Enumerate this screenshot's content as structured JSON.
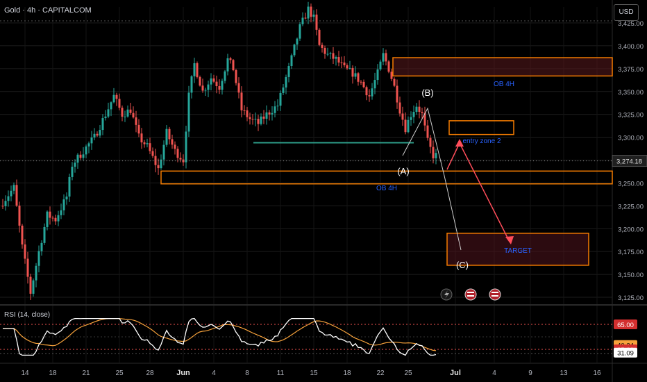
{
  "header": {
    "title": "Gold · 4h · CAPITALCOM",
    "currency_button": "USD"
  },
  "colors": {
    "up": "#26a69a",
    "down": "#ef5350",
    "orange": "#f57c00",
    "support_line": "#2e9e8a",
    "rsi_line": "#ffffff",
    "rsi_ma": "#f7a23b",
    "label_blue": "#2962ff"
  },
  "chart_data": [
    {
      "type": "candlestick",
      "symbol": "Gold",
      "timeframe": "4h",
      "ylim": [
        3115,
        3455
      ],
      "y_ticks": [
        "3,425.00",
        "3,400.00",
        "3,375.00",
        "3,350.00",
        "3,325.00",
        "3,300.00",
        "3,275.00",
        "3,250.00",
        "3,225.00",
        "3,200.00",
        "3,175.00",
        "3,150.00",
        "3,125.00"
      ],
      "y_tick_values": [
        3425,
        3400,
        3375,
        3350,
        3325,
        3300,
        3275,
        3250,
        3225,
        3200,
        3175,
        3150,
        3125
      ],
      "x_ticks": [
        "14",
        "18",
        "21",
        "25",
        "28",
        "Jun",
        "4",
        "8",
        "11",
        "15",
        "18",
        "22",
        "25",
        "Jul",
        "4",
        "9",
        "13",
        "16"
      ],
      "x_tick_slots": [
        8,
        18,
        30,
        42,
        53,
        65,
        76,
        88,
        100,
        112,
        124,
        136,
        146,
        163,
        177,
        190,
        202,
        214
      ],
      "last_price": "3,274.18",
      "last_price_value": 3274.18,
      "path": [
        [
          0,
          3225
        ],
        [
          5,
          3245
        ],
        [
          8,
          3180
        ],
        [
          11,
          3130
        ],
        [
          14,
          3175
        ],
        [
          17,
          3215
        ],
        [
          20,
          3210
        ],
        [
          24,
          3235
        ],
        [
          26,
          3270
        ],
        [
          30,
          3285
        ],
        [
          34,
          3300
        ],
        [
          38,
          3325
        ],
        [
          41,
          3345
        ],
        [
          44,
          3325
        ],
        [
          47,
          3330
        ],
        [
          50,
          3300
        ],
        [
          53,
          3290
        ],
        [
          57,
          3265
        ],
        [
          60,
          3305
        ],
        [
          63,
          3285
        ],
        [
          66,
          3275
        ],
        [
          68,
          3345
        ],
        [
          70,
          3380
        ],
        [
          73,
          3350
        ],
        [
          76,
          3365
        ],
        [
          79,
          3355
        ],
        [
          82,
          3385
        ],
        [
          84,
          3375
        ],
        [
          87,
          3330
        ],
        [
          90,
          3320
        ],
        [
          93,
          3315
        ],
        [
          96,
          3325
        ],
        [
          100,
          3335
        ],
        [
          104,
          3375
        ],
        [
          108,
          3420
        ],
        [
          111,
          3440
        ],
        [
          113,
          3430
        ],
        [
          115,
          3400
        ],
        [
          118,
          3390
        ],
        [
          121,
          3385
        ],
        [
          124,
          3375
        ],
        [
          127,
          3370
        ],
        [
          130,
          3360
        ],
        [
          133,
          3345
        ],
        [
          136,
          3370
        ],
        [
          138,
          3390
        ],
        [
          140,
          3375
        ],
        [
          142,
          3355
        ],
        [
          144,
          3330
        ],
        [
          146,
          3310
        ],
        [
          148,
          3325
        ],
        [
          150,
          3335
        ],
        [
          152,
          3325
        ],
        [
          154,
          3295
        ],
        [
          156,
          3280
        ]
      ],
      "annotations": {
        "ob_upper_label": "OB 4H",
        "ob_upper_range": [
          3367,
          3387
        ],
        "ob_lower_label": "OB 4H",
        "ob_lower_range": [
          3249,
          3263
        ],
        "entry_label": "entry zone 2",
        "entry_range": [
          3303,
          3318
        ],
        "target_label": "TARGET",
        "target_range": [
          3160,
          3195
        ],
        "wave_a": "(A)",
        "wave_b": "(B)",
        "wave_c": "(C)",
        "support_level": 3294
      }
    },
    {
      "type": "line",
      "title": "RSI (14, close)",
      "levels": [
        "65.00",
        "35.00"
      ],
      "level_values": [
        65,
        35
      ],
      "rsi_value": "31.09",
      "rsi_ma_value": "40.24",
      "ylim": [
        25,
        75
      ]
    }
  ]
}
